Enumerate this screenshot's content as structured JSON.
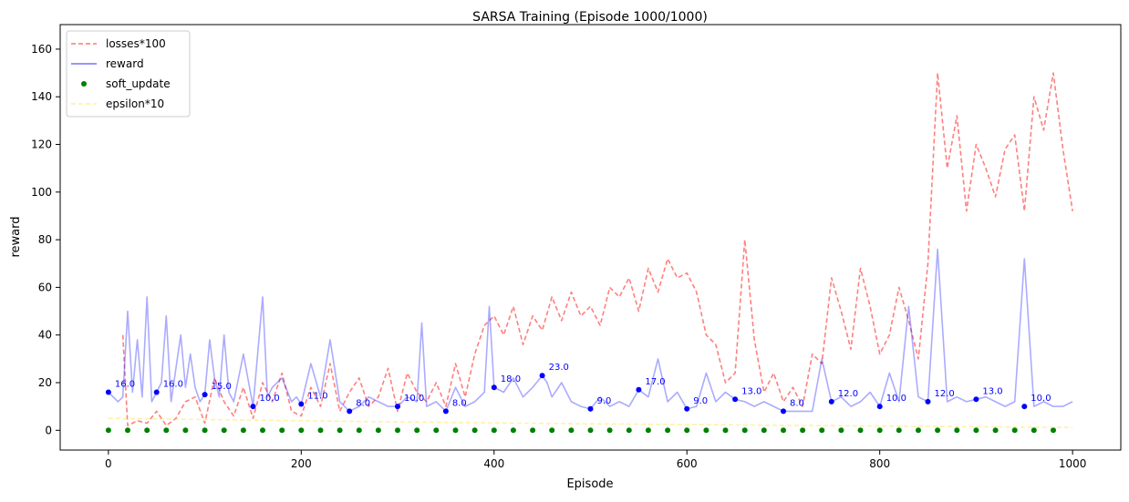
{
  "chart_data": {
    "type": "line",
    "title": "SARSA Training (Episode 1000/1000)",
    "xlabel": "Episode",
    "ylabel": "reward",
    "xlim": [
      -50,
      1050
    ],
    "ylim": [
      -8.3,
      170.3
    ],
    "xticks": [
      0,
      200,
      400,
      600,
      800,
      1000
    ],
    "yticks": [
      0,
      20,
      40,
      60,
      80,
      100,
      120,
      140,
      160
    ],
    "grid": false,
    "legend_position": "top-left",
    "legend": [
      {
        "label": "losses*100",
        "style": "dashed",
        "color": "#ff0000"
      },
      {
        "label": "reward",
        "style": "solid",
        "color": "#0000ff"
      },
      {
        "label": "soft_update",
        "style": "dot",
        "color": "#008000"
      },
      {
        "label": "epsilon*10",
        "style": "dashed",
        "color": "#ffd700"
      }
    ],
    "series": [
      {
        "name": "losses*100",
        "color": "#ff0000",
        "opacity": 0.5,
        "style": "dashed",
        "x": [
          0,
          10,
          15,
          20,
          30,
          40,
          50,
          60,
          70,
          80,
          90,
          100,
          110,
          120,
          130,
          140,
          150,
          160,
          170,
          180,
          190,
          200,
          210,
          220,
          230,
          240,
          250,
          260,
          270,
          280,
          290,
          300,
          310,
          320,
          330,
          340,
          350,
          360,
          370,
          380,
          390,
          400,
          410,
          420,
          430,
          440,
          450,
          460,
          470,
          480,
          490,
          500,
          510,
          520,
          530,
          540,
          550,
          560,
          570,
          580,
          590,
          600,
          610,
          620,
          630,
          640,
          650,
          660,
          670,
          680,
          690,
          700,
          710,
          720,
          730,
          740,
          750,
          760,
          770,
          780,
          790,
          800,
          810,
          820,
          830,
          840,
          850,
          860,
          870,
          880,
          890,
          900,
          910,
          920,
          930,
          940,
          950,
          960,
          970,
          980,
          990,
          1000
        ],
        "y": [
          null,
          null,
          40,
          2,
          4,
          3,
          8,
          2,
          5,
          12,
          14,
          3,
          22,
          12,
          6,
          18,
          5,
          20,
          12,
          24,
          8,
          6,
          18,
          10,
          28,
          8,
          16,
          22,
          10,
          14,
          26,
          8,
          24,
          16,
          12,
          20,
          10,
          28,
          14,
          32,
          44,
          48,
          40,
          52,
          36,
          48,
          42,
          56,
          46,
          58,
          48,
          52,
          44,
          60,
          56,
          64,
          50,
          68,
          58,
          72,
          64,
          66,
          58,
          40,
          36,
          20,
          24,
          80,
          38,
          16,
          24,
          12,
          18,
          10,
          32,
          28,
          64,
          50,
          34,
          68,
          52,
          32,
          40,
          60,
          46,
          30,
          70,
          150,
          110,
          132,
          92,
          120,
          110,
          98,
          118,
          124,
          92,
          140,
          126,
          150,
          118,
          92
        ]
      },
      {
        "name": "reward",
        "color": "#0000ff",
        "opacity": 0.33,
        "style": "solid",
        "x": [
          0,
          10,
          15,
          20,
          25,
          30,
          35,
          40,
          45,
          50,
          55,
          60,
          65,
          70,
          75,
          80,
          85,
          90,
          95,
          100,
          105,
          110,
          115,
          120,
          125,
          130,
          140,
          150,
          160,
          165,
          170,
          180,
          190,
          195,
          200,
          210,
          220,
          230,
          240,
          250,
          260,
          270,
          280,
          290,
          300,
          310,
          320,
          325,
          330,
          340,
          350,
          360,
          370,
          380,
          390,
          395,
          400,
          410,
          420,
          430,
          440,
          450,
          455,
          460,
          470,
          480,
          490,
          500,
          510,
          520,
          530,
          540,
          550,
          560,
          570,
          580,
          590,
          600,
          610,
          620,
          630,
          640,
          650,
          660,
          670,
          680,
          690,
          700,
          710,
          720,
          730,
          740,
          750,
          760,
          770,
          780,
          790,
          800,
          810,
          820,
          830,
          840,
          850,
          860,
          870,
          880,
          890,
          900,
          910,
          920,
          930,
          940,
          950,
          960,
          970,
          980,
          990,
          1000
        ],
        "y": [
          16,
          12,
          14,
          50,
          16,
          38,
          14,
          56,
          12,
          16,
          20,
          48,
          12,
          26,
          40,
          18,
          32,
          18,
          12,
          15,
          38,
          22,
          14,
          40,
          16,
          12,
          32,
          10,
          56,
          14,
          18,
          22,
          12,
          14,
          11,
          28,
          14,
          38,
          12,
          8,
          10,
          14,
          12,
          10,
          10,
          14,
          12,
          45,
          10,
          12,
          8,
          18,
          10,
          12,
          16,
          52,
          18,
          16,
          22,
          14,
          18,
          23,
          20,
          14,
          20,
          12,
          10,
          9,
          14,
          10,
          12,
          10,
          17,
          14,
          30,
          12,
          16,
          9,
          10,
          24,
          12,
          16,
          13,
          12,
          10,
          12,
          10,
          8,
          8,
          8,
          8,
          30,
          12,
          14,
          10,
          12,
          16,
          10,
          24,
          12,
          52,
          14,
          12,
          76,
          12,
          14,
          12,
          13,
          14,
          12,
          10,
          12,
          72,
          10,
          12,
          10,
          10,
          12
        ]
      },
      {
        "name": "soft_update",
        "color": "#008000",
        "style": "dot",
        "x": [
          0,
          20,
          40,
          60,
          80,
          100,
          120,
          140,
          160,
          180,
          200,
          220,
          240,
          260,
          280,
          300,
          320,
          340,
          360,
          380,
          400,
          420,
          440,
          460,
          480,
          500,
          520,
          540,
          560,
          580,
          600,
          620,
          640,
          660,
          680,
          700,
          720,
          740,
          760,
          780,
          800,
          820,
          840,
          860,
          880,
          900,
          920,
          940,
          960,
          980
        ],
        "y": [
          0,
          0,
          0,
          0,
          0,
          0,
          0,
          0,
          0,
          0,
          0,
          0,
          0,
          0,
          0,
          0,
          0,
          0,
          0,
          0,
          0,
          0,
          0,
          0,
          0,
          0,
          0,
          0,
          0,
          0,
          0,
          0,
          0,
          0,
          0,
          0,
          0,
          0,
          0,
          0,
          0,
          0,
          0,
          0,
          0,
          0,
          0,
          0,
          0,
          0
        ]
      },
      {
        "name": "epsilon*10",
        "color": "#ffd700",
        "opacity": 0.35,
        "style": "dashed",
        "x": [
          0,
          100,
          200,
          300,
          400,
          500,
          600,
          700,
          800,
          900,
          1000
        ],
        "y": [
          5.0,
          4.5,
          4.0,
          3.5,
          3.1,
          2.7,
          2.4,
          2.1,
          1.8,
          1.5,
          1.2
        ]
      }
    ],
    "annotations": [
      {
        "x": 0,
        "y": 16,
        "label": "16.0"
      },
      {
        "x": 50,
        "y": 16,
        "label": "16.0"
      },
      {
        "x": 100,
        "y": 15,
        "label": "15.0"
      },
      {
        "x": 150,
        "y": 10,
        "label": "10.0"
      },
      {
        "x": 200,
        "y": 11,
        "label": "11.0"
      },
      {
        "x": 250,
        "y": 8,
        "label": "8.0"
      },
      {
        "x": 300,
        "y": 10,
        "label": "10.0"
      },
      {
        "x": 350,
        "y": 8,
        "label": "8.0"
      },
      {
        "x": 400,
        "y": 18,
        "label": "18.0"
      },
      {
        "x": 450,
        "y": 23,
        "label": "23.0"
      },
      {
        "x": 500,
        "y": 9,
        "label": "9.0"
      },
      {
        "x": 550,
        "y": 17,
        "label": "17.0"
      },
      {
        "x": 600,
        "y": 9,
        "label": "9.0"
      },
      {
        "x": 650,
        "y": 13,
        "label": "13.0"
      },
      {
        "x": 700,
        "y": 8,
        "label": "8.0"
      },
      {
        "x": 750,
        "y": 12,
        "label": "12.0"
      },
      {
        "x": 800,
        "y": 10,
        "label": "10.0"
      },
      {
        "x": 850,
        "y": 12,
        "label": "12.0"
      },
      {
        "x": 900,
        "y": 13,
        "label": "13.0"
      },
      {
        "x": 950,
        "y": 10,
        "label": "10.0"
      }
    ]
  }
}
